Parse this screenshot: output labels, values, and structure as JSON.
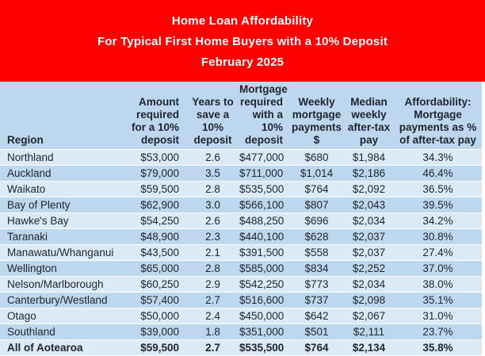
{
  "colors": {
    "banner_background": "#FE0000",
    "banner_text": "#FFFFFF",
    "header_row": "#BDD7EE",
    "row_light": "#DCE9F6",
    "row_dark": "#BDD7EE",
    "row_separator": "#FFFFFF",
    "table_text": "#1E2430"
  },
  "chart_data": {
    "type": "table",
    "title": "Home Loan Affordability",
    "subtitle": "For Typical First Home Buyers with a 10% Deposit",
    "period": "February 2025",
    "columns": [
      "Region",
      "Amount required for a 10% deposit",
      "Years to save a 10% deposit",
      "Mortgage required with a 10% deposit",
      "Weekly mortgage payments $",
      "Median weekly after-tax pay",
      "Affordability: Mortgage payments as % of after-tax pay"
    ],
    "header_lines": [
      "Region",
      "Amount\nrequired\nfor a 10%\ndeposit",
      "Years to\nsave a\n10%\ndeposit",
      "Mortgage\nrequired\nwith a 10%\ndeposit",
      "Weekly\nmortgage\npayments\n$",
      "Median\nweekly\nafter-tax\npay",
      "Affordability:\nMortgage\npayments as %\nof after-tax pay"
    ],
    "rows": [
      {
        "cells": [
          "Northland",
          "$53,000",
          "2.6",
          "$477,000",
          "$680",
          "$1,984",
          "34.3%"
        ],
        "bold": false
      },
      {
        "cells": [
          "Auckland",
          "$79,000",
          "3.5",
          "$711,000",
          "$1,014",
          "$2,186",
          "46.4%"
        ],
        "bold": false
      },
      {
        "cells": [
          "Waikato",
          "$59,500",
          "2.8",
          "$535,500",
          "$764",
          "$2,092",
          "36.5%"
        ],
        "bold": false
      },
      {
        "cells": [
          "Bay of Plenty",
          "$62,900",
          "3.0",
          "$566,100",
          "$807",
          "$2,043",
          "39.5%"
        ],
        "bold": false
      },
      {
        "cells": [
          "Hawke's Bay",
          "$54,250",
          "2.6",
          "$488,250",
          "$696",
          "$2,034",
          "34.2%"
        ],
        "bold": false
      },
      {
        "cells": [
          "Taranaki",
          "$48,900",
          "2.3",
          "$440,100",
          "$628",
          "$2,037",
          "30.8%"
        ],
        "bold": false
      },
      {
        "cells": [
          "Manawatu/Whanganui",
          "$43,500",
          "2.1",
          "$391,500",
          "$558",
          "$2,037",
          "27.4%"
        ],
        "bold": false
      },
      {
        "cells": [
          "Wellington",
          "$65,000",
          "2.8",
          "$585,000",
          "$834",
          "$2,252",
          "37.0%"
        ],
        "bold": false
      },
      {
        "cells": [
          "Nelson/Marlborough",
          "$60,250",
          "2.9",
          "$542,250",
          "$773",
          "$2,034",
          "38.0%"
        ],
        "bold": false
      },
      {
        "cells": [
          "Canterbury/Westland",
          "$57,400",
          "2.7",
          "$516,600",
          "$737",
          "$2,098",
          "35.1%"
        ],
        "bold": false
      },
      {
        "cells": [
          "Otago",
          "$50,000",
          "2.4",
          "$450,000",
          "$642",
          "$2,067",
          "31.0%"
        ],
        "bold": false
      },
      {
        "cells": [
          "Southland",
          "$39,000",
          "1.8",
          "$351,000",
          "$501",
          "$2,111",
          "23.7%"
        ],
        "bold": false
      },
      {
        "cells": [
          "All of Aotearoa",
          "$59,500",
          "2.7",
          "$535,500",
          "$764",
          "$2,134",
          "35.8%"
        ],
        "bold": true
      }
    ]
  }
}
